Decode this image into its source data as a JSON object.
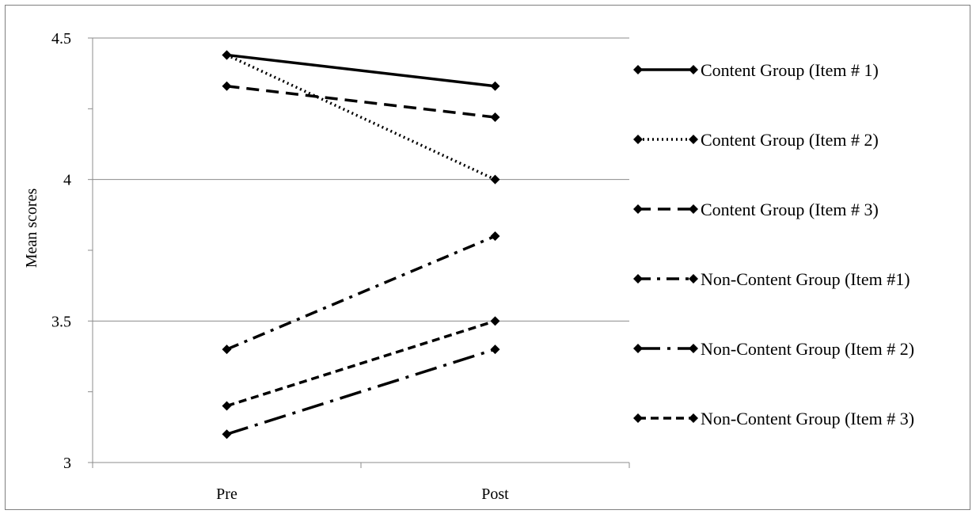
{
  "chart_data": {
    "type": "line",
    "title": "",
    "xlabel": "",
    "ylabel": "Mean scores",
    "categories": [
      "Pre",
      "Post"
    ],
    "ylim": [
      3,
      4.5
    ],
    "yticks": [
      "3",
      "3.5",
      "4",
      "4.5"
    ],
    "grid": true,
    "legend_position": "right",
    "series": [
      {
        "name": "Content Group (Item # 1)",
        "values": [
          4.44,
          4.33
        ],
        "style": "solid"
      },
      {
        "name": "Content Group (Item # 2)",
        "values": [
          4.44,
          4.0
        ],
        "style": "dotted"
      },
      {
        "name": "Content Group (Item # 3)",
        "values": [
          4.33,
          4.22
        ],
        "style": "dash"
      },
      {
        "name": "Non-Content Group (Item #1)",
        "values": [
          3.4,
          3.8
        ],
        "style": "dashdot"
      },
      {
        "name": "Non-Content Group (Item # 2)",
        "values": [
          3.1,
          3.4
        ],
        "style": "longdashdot"
      },
      {
        "name": "Non-Content Group (Item # 3)",
        "values": [
          3.2,
          3.5
        ],
        "style": "shortdash"
      }
    ],
    "colors": {
      "line": "#000000",
      "grid": "#8c8c8c"
    }
  }
}
